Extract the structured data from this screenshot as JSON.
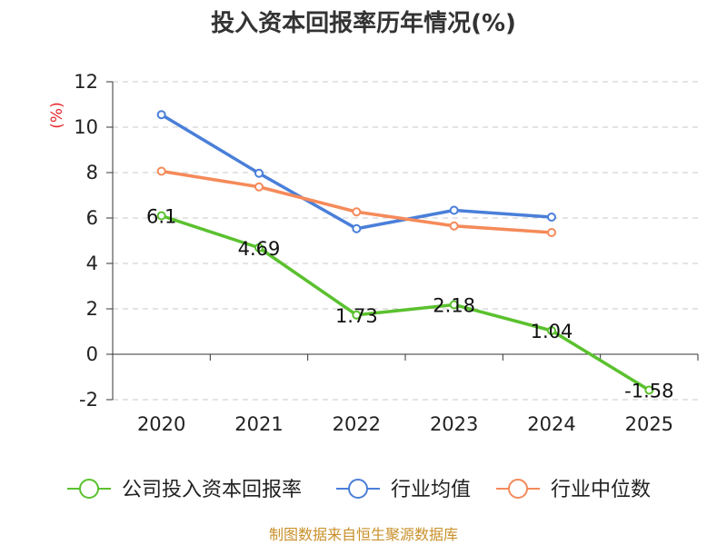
{
  "chart_data": {
    "type": "line",
    "title": "投入资本回报率历年情况(%)",
    "ylabel": "(%)",
    "xlabel": "",
    "categories": [
      "2020",
      "2021",
      "2022",
      "2023",
      "2024",
      "2025"
    ],
    "ylim": [
      -2,
      12
    ],
    "yticks": [
      -2,
      0,
      2,
      4,
      6,
      8,
      10,
      12
    ],
    "grid": true,
    "legend_position": "bottom",
    "series": [
      {
        "name": "公司投入资本回报率",
        "color": "#5ac12e",
        "values": [
          6.1,
          4.69,
          1.73,
          2.18,
          1.04,
          -1.58
        ],
        "labels": [
          "6.1",
          "4.69",
          "1.73",
          "2.18",
          "1.04",
          "-1.58"
        ]
      },
      {
        "name": "行业均值",
        "color": "#4a7fd9",
        "values": [
          10.55,
          7.97,
          5.53,
          6.34,
          6.04,
          null
        ]
      },
      {
        "name": "行业中位数",
        "color": "#f58a5a",
        "values": [
          8.06,
          7.37,
          6.27,
          5.65,
          5.36,
          null
        ]
      }
    ]
  },
  "footer": {
    "source": "制图数据来自恒生聚源数据库"
  }
}
